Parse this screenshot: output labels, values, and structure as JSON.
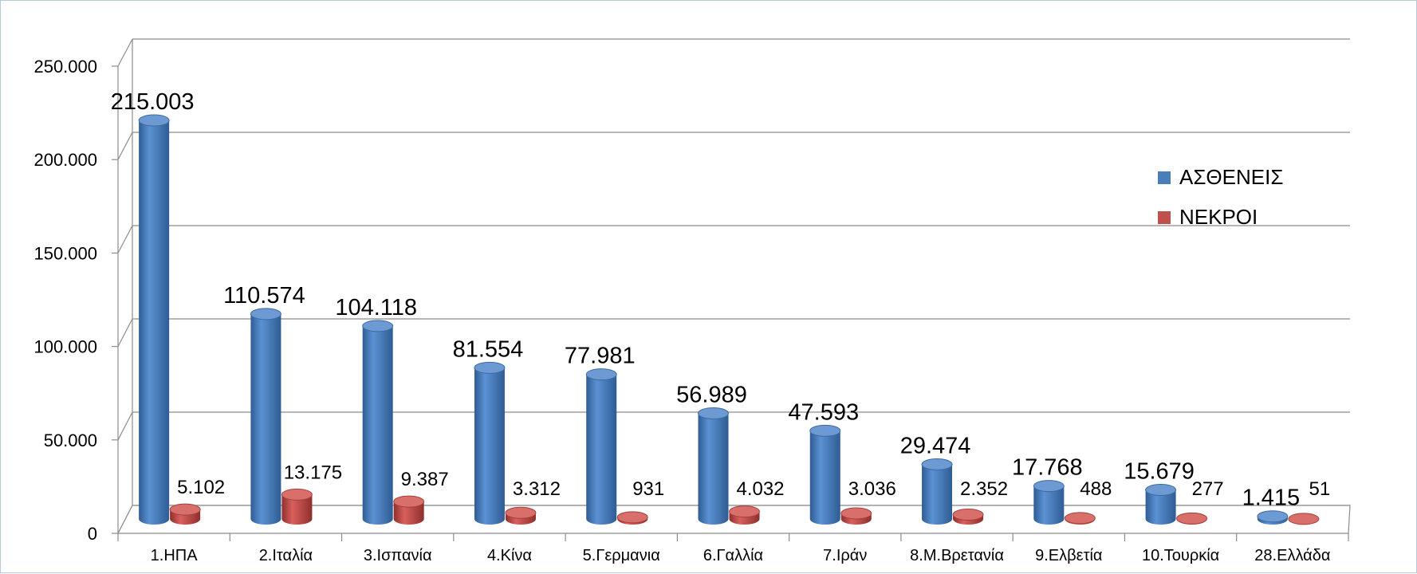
{
  "chart_data": {
    "type": "bar",
    "title": "",
    "xlabel": "",
    "ylabel": "",
    "ylim": [
      0,
      250000
    ],
    "yticks": [
      "0",
      "50.000",
      "100.000",
      "150.000",
      "200.000",
      "250.000"
    ],
    "grid": true,
    "legend_position": "right",
    "categories": [
      "1.ΗΠΑ",
      "2.Ιταλία",
      "3.Ισπανία",
      "4.Κίνα",
      "5.Γερμανια",
      "6.Γαλλία",
      "7.Ιράν",
      "8.Μ.Βρετανία",
      "9.Ελβετία",
      "10.Τουρκία",
      "28.Ελλάδα"
    ],
    "series": [
      {
        "name": "ΑΣΘΕΝΕΙΣ",
        "color": "#4a7ebb",
        "values": [
          215003,
          110574,
          104118,
          81554,
          77981,
          56989,
          47593,
          29474,
          17768,
          15679,
          1415
        ],
        "labels": [
          "215.003",
          "110.574",
          "104.118",
          "81.554",
          "77.981",
          "56.989",
          "47.593",
          "29.474",
          "17.768",
          "15.679",
          "1.415"
        ]
      },
      {
        "name": "ΝΕΚΡΟΙ",
        "color": "#c0504d",
        "values": [
          5102,
          13175,
          9387,
          3312,
          931,
          4032,
          3036,
          2352,
          488,
          277,
          51
        ],
        "labels": [
          "5.102",
          "13.175",
          "9.387",
          "3.312",
          "931",
          "4.032",
          "3.036",
          "2.352",
          "488",
          "277",
          "51"
        ]
      }
    ]
  }
}
